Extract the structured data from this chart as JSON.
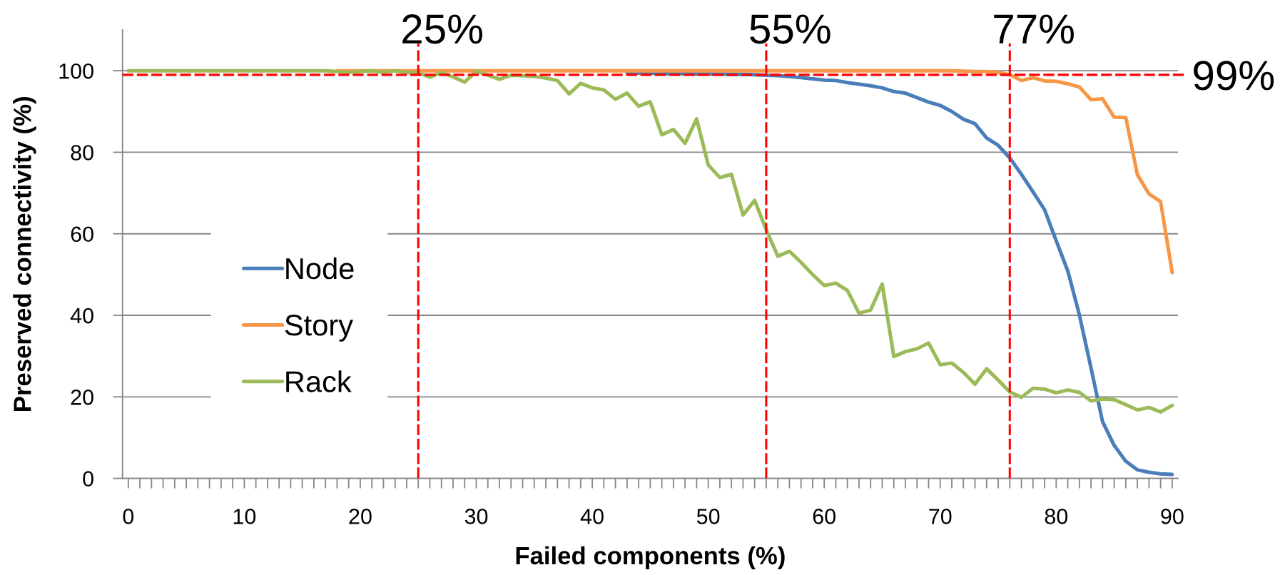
{
  "chart_data": {
    "type": "line",
    "xlabel": "Failed components (%)",
    "ylabel": "Preserved connectivity (%)",
    "x": [
      0,
      1,
      2,
      3,
      4,
      5,
      6,
      7,
      8,
      9,
      10,
      11,
      12,
      13,
      14,
      15,
      16,
      17,
      18,
      19,
      20,
      21,
      22,
      23,
      24,
      25,
      26,
      27,
      28,
      29,
      30,
      31,
      32,
      33,
      34,
      35,
      36,
      37,
      38,
      39,
      40,
      41,
      42,
      43,
      44,
      45,
      46,
      47,
      48,
      49,
      50,
      51,
      52,
      53,
      54,
      55,
      56,
      57,
      58,
      59,
      60,
      61,
      62,
      63,
      64,
      65,
      66,
      67,
      68,
      69,
      70,
      71,
      72,
      73,
      74,
      75,
      76,
      77,
      78,
      79,
      80,
      81,
      82,
      83,
      84,
      85,
      86,
      87,
      88,
      89,
      90
    ],
    "series": [
      {
        "name": "Node",
        "color": "#4a7ebb",
        "values": [
          null,
          null,
          null,
          null,
          null,
          null,
          null,
          null,
          null,
          null,
          null,
          null,
          null,
          null,
          null,
          null,
          null,
          null,
          null,
          null,
          null,
          null,
          null,
          null,
          null,
          null,
          null,
          null,
          null,
          null,
          null,
          null,
          null,
          null,
          null,
          null,
          null,
          null,
          null,
          null,
          null,
          null,
          null,
          99.5,
          99.4,
          99.4,
          99.3,
          99.3,
          99.3,
          99.2,
          99.2,
          99.2,
          99.1,
          99.1,
          99.0,
          98.9,
          98.8,
          98.6,
          98.3,
          98.0,
          97.7,
          97.6,
          97.1,
          96.7,
          96.3,
          95.8,
          94.9,
          94.5,
          93.4,
          92.3,
          91.5,
          90.0,
          88.1,
          87.0,
          83.5,
          81.7,
          78.6,
          74.6,
          70.3,
          65.9,
          58.3,
          50.9,
          40.1,
          27.1,
          13.9,
          8.1,
          4.2,
          2.1,
          1.5,
          1.1,
          1.0
        ]
      },
      {
        "name": "Story",
        "color": "#f79646",
        "values": [
          null,
          null,
          null,
          null,
          null,
          null,
          null,
          null,
          null,
          null,
          null,
          null,
          null,
          null,
          null,
          null,
          null,
          null,
          100,
          100,
          100,
          100,
          100,
          100,
          100,
          100,
          100,
          100,
          100,
          100,
          100,
          100,
          100,
          100,
          100,
          100,
          100,
          100,
          100,
          100,
          100,
          100,
          100,
          100,
          100,
          100,
          100,
          100,
          100,
          100,
          100,
          100,
          100,
          100,
          100,
          100,
          100,
          100,
          100,
          100,
          100,
          100,
          100,
          100,
          100,
          100,
          100,
          100,
          100,
          100,
          100,
          100,
          99.9,
          99.8,
          99.8,
          99.6,
          99.0,
          97.6,
          98.3,
          97.5,
          97.4,
          96.8,
          96.0,
          92.9,
          93.1,
          88.6,
          88.5,
          74.5,
          69.8,
          67.9,
          50.5
        ]
      },
      {
        "name": "Rack",
        "color": "#9bbb59",
        "values": [
          100,
          100,
          100,
          100,
          100,
          100,
          100,
          100,
          100,
          100,
          100,
          100,
          100,
          100,
          100,
          100,
          100,
          100,
          99.8,
          99.6,
          99.8,
          100,
          99.6,
          100,
          99.6,
          99.5,
          98.4,
          99.6,
          98.5,
          97.2,
          99.9,
          98.9,
          97.9,
          98.9,
          98.8,
          98.6,
          98.2,
          97.6,
          94.3,
          96.9,
          95.8,
          95.3,
          93.0,
          94.5,
          91.3,
          92.4,
          84.3,
          85.6,
          82.2,
          88.2,
          76.9,
          73.8,
          74.6,
          64.6,
          68.2,
          61.0,
          54.5,
          55.7,
          53.0,
          50.0,
          47.3,
          47.9,
          46.1,
          40.5,
          41.3,
          47.7,
          29.9,
          31.1,
          31.8,
          33.2,
          27.9,
          28.3,
          26.0,
          23.1,
          26.9,
          24.1,
          21.2,
          19.9,
          22.1,
          21.9,
          21.0,
          21.7,
          21.1,
          19.0,
          19.5,
          19.3,
          18.1,
          16.8,
          17.4,
          16.3,
          17.9
        ]
      }
    ],
    "xlim": [
      -0.5,
      90.5
    ],
    "xticks": [
      0,
      10,
      20,
      30,
      40,
      50,
      60,
      70,
      80,
      90
    ],
    "ylim": [
      0,
      110
    ],
    "yticks": [
      0,
      20,
      40,
      60,
      80,
      100
    ],
    "grid": "y",
    "legend": "left",
    "ref_lines": [
      {
        "axis": "x",
        "value": 25,
        "label": "25%",
        "color": "#ff0000",
        "line_style": "dashed"
      },
      {
        "axis": "x",
        "value": 55,
        "label": "55%",
        "color": "#ff0000",
        "line_style": "dashed"
      },
      {
        "axis": "x",
        "value": 76,
        "color": "#ff0000",
        "line_style": "dashed"
      },
      {
        "axis": "y",
        "value": 99,
        "label": "99%",
        "color": "#ff0000",
        "line_style": "dashed"
      }
    ],
    "annotations": [
      "77%"
    ]
  }
}
